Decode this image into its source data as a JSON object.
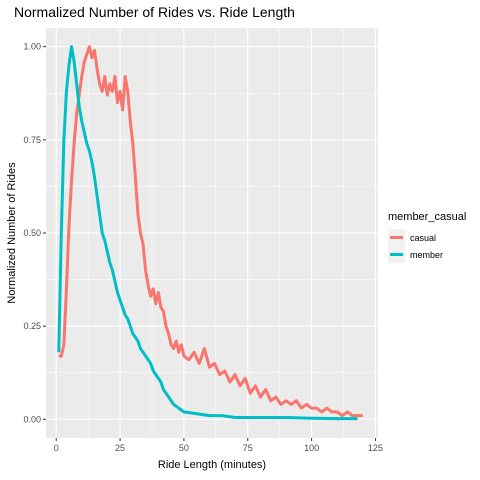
{
  "chart_data": {
    "type": "line",
    "title": "Normalized Number of Rides vs. Ride Length",
    "xlabel": "Ride Length (minutes)",
    "ylabel": "Normalized Number of Rides",
    "xlim": [
      -4,
      126
    ],
    "ylim": [
      -0.05,
      1.05
    ],
    "x_ticks": [
      0,
      25,
      50,
      75,
      100,
      125
    ],
    "y_ticks": [
      0.0,
      0.25,
      0.5,
      0.75,
      1.0
    ],
    "x_tick_labels": [
      "0",
      "25",
      "50",
      "75",
      "100",
      "125"
    ],
    "y_tick_labels": [
      "0.00",
      "0.25",
      "0.50",
      "0.75",
      "1.00"
    ],
    "grid": true,
    "legend_title": "member_casual",
    "legend_position": "right",
    "series": [
      {
        "name": "casual",
        "color": "#F8766D",
        "x": [
          1,
          2,
          3,
          4,
          5,
          6,
          7,
          8,
          9,
          10,
          11,
          12,
          13,
          14,
          15,
          16,
          17,
          18,
          19,
          20,
          21,
          22,
          23,
          24,
          25,
          26,
          27,
          28,
          29,
          30,
          31,
          32,
          33,
          34,
          35,
          36,
          37,
          38,
          39,
          40,
          41,
          42,
          43,
          44,
          45,
          46,
          47,
          48,
          49,
          50,
          52,
          54,
          56,
          58,
          60,
          62,
          64,
          66,
          68,
          70,
          72,
          74,
          76,
          78,
          80,
          82,
          84,
          86,
          88,
          90,
          92,
          94,
          96,
          98,
          100,
          102,
          104,
          106,
          108,
          110,
          112,
          114,
          116,
          118,
          120
        ],
        "values": [
          0.17,
          0.17,
          0.2,
          0.35,
          0.52,
          0.64,
          0.74,
          0.82,
          0.87,
          0.92,
          0.96,
          0.98,
          1.0,
          0.97,
          0.99,
          0.94,
          0.9,
          0.88,
          0.92,
          0.87,
          0.9,
          0.88,
          0.92,
          0.85,
          0.88,
          0.83,
          0.92,
          0.88,
          0.8,
          0.74,
          0.65,
          0.55,
          0.5,
          0.47,
          0.4,
          0.36,
          0.33,
          0.35,
          0.31,
          0.34,
          0.3,
          0.29,
          0.25,
          0.23,
          0.2,
          0.19,
          0.21,
          0.18,
          0.2,
          0.17,
          0.16,
          0.18,
          0.15,
          0.19,
          0.14,
          0.15,
          0.12,
          0.13,
          0.1,
          0.12,
          0.09,
          0.11,
          0.07,
          0.09,
          0.06,
          0.08,
          0.05,
          0.06,
          0.04,
          0.05,
          0.04,
          0.05,
          0.03,
          0.04,
          0.03,
          0.03,
          0.02,
          0.03,
          0.02,
          0.02,
          0.01,
          0.02,
          0.01,
          0.01,
          0.01
        ]
      },
      {
        "name": "member",
        "color": "#00BFC4",
        "x": [
          1,
          2,
          3,
          4,
          5,
          6,
          7,
          8,
          9,
          10,
          11,
          12,
          13,
          14,
          15,
          16,
          17,
          18,
          19,
          20,
          21,
          22,
          23,
          24,
          25,
          26,
          27,
          28,
          29,
          30,
          31,
          32,
          33,
          34,
          35,
          36,
          37,
          38,
          39,
          40,
          41,
          42,
          43,
          44,
          45,
          46,
          47,
          48,
          49,
          50,
          55,
          60,
          65,
          70,
          80,
          90,
          100,
          110,
          118
        ],
        "values": [
          0.18,
          0.5,
          0.75,
          0.88,
          0.95,
          1.0,
          0.96,
          0.9,
          0.84,
          0.8,
          0.77,
          0.74,
          0.72,
          0.69,
          0.65,
          0.6,
          0.55,
          0.5,
          0.48,
          0.45,
          0.42,
          0.4,
          0.37,
          0.34,
          0.32,
          0.3,
          0.28,
          0.27,
          0.25,
          0.23,
          0.22,
          0.21,
          0.19,
          0.18,
          0.17,
          0.16,
          0.15,
          0.13,
          0.12,
          0.11,
          0.1,
          0.08,
          0.07,
          0.06,
          0.05,
          0.04,
          0.035,
          0.03,
          0.025,
          0.02,
          0.015,
          0.01,
          0.01,
          0.005,
          0.005,
          0.005,
          0.003,
          0.002,
          0.002
        ]
      }
    ]
  }
}
